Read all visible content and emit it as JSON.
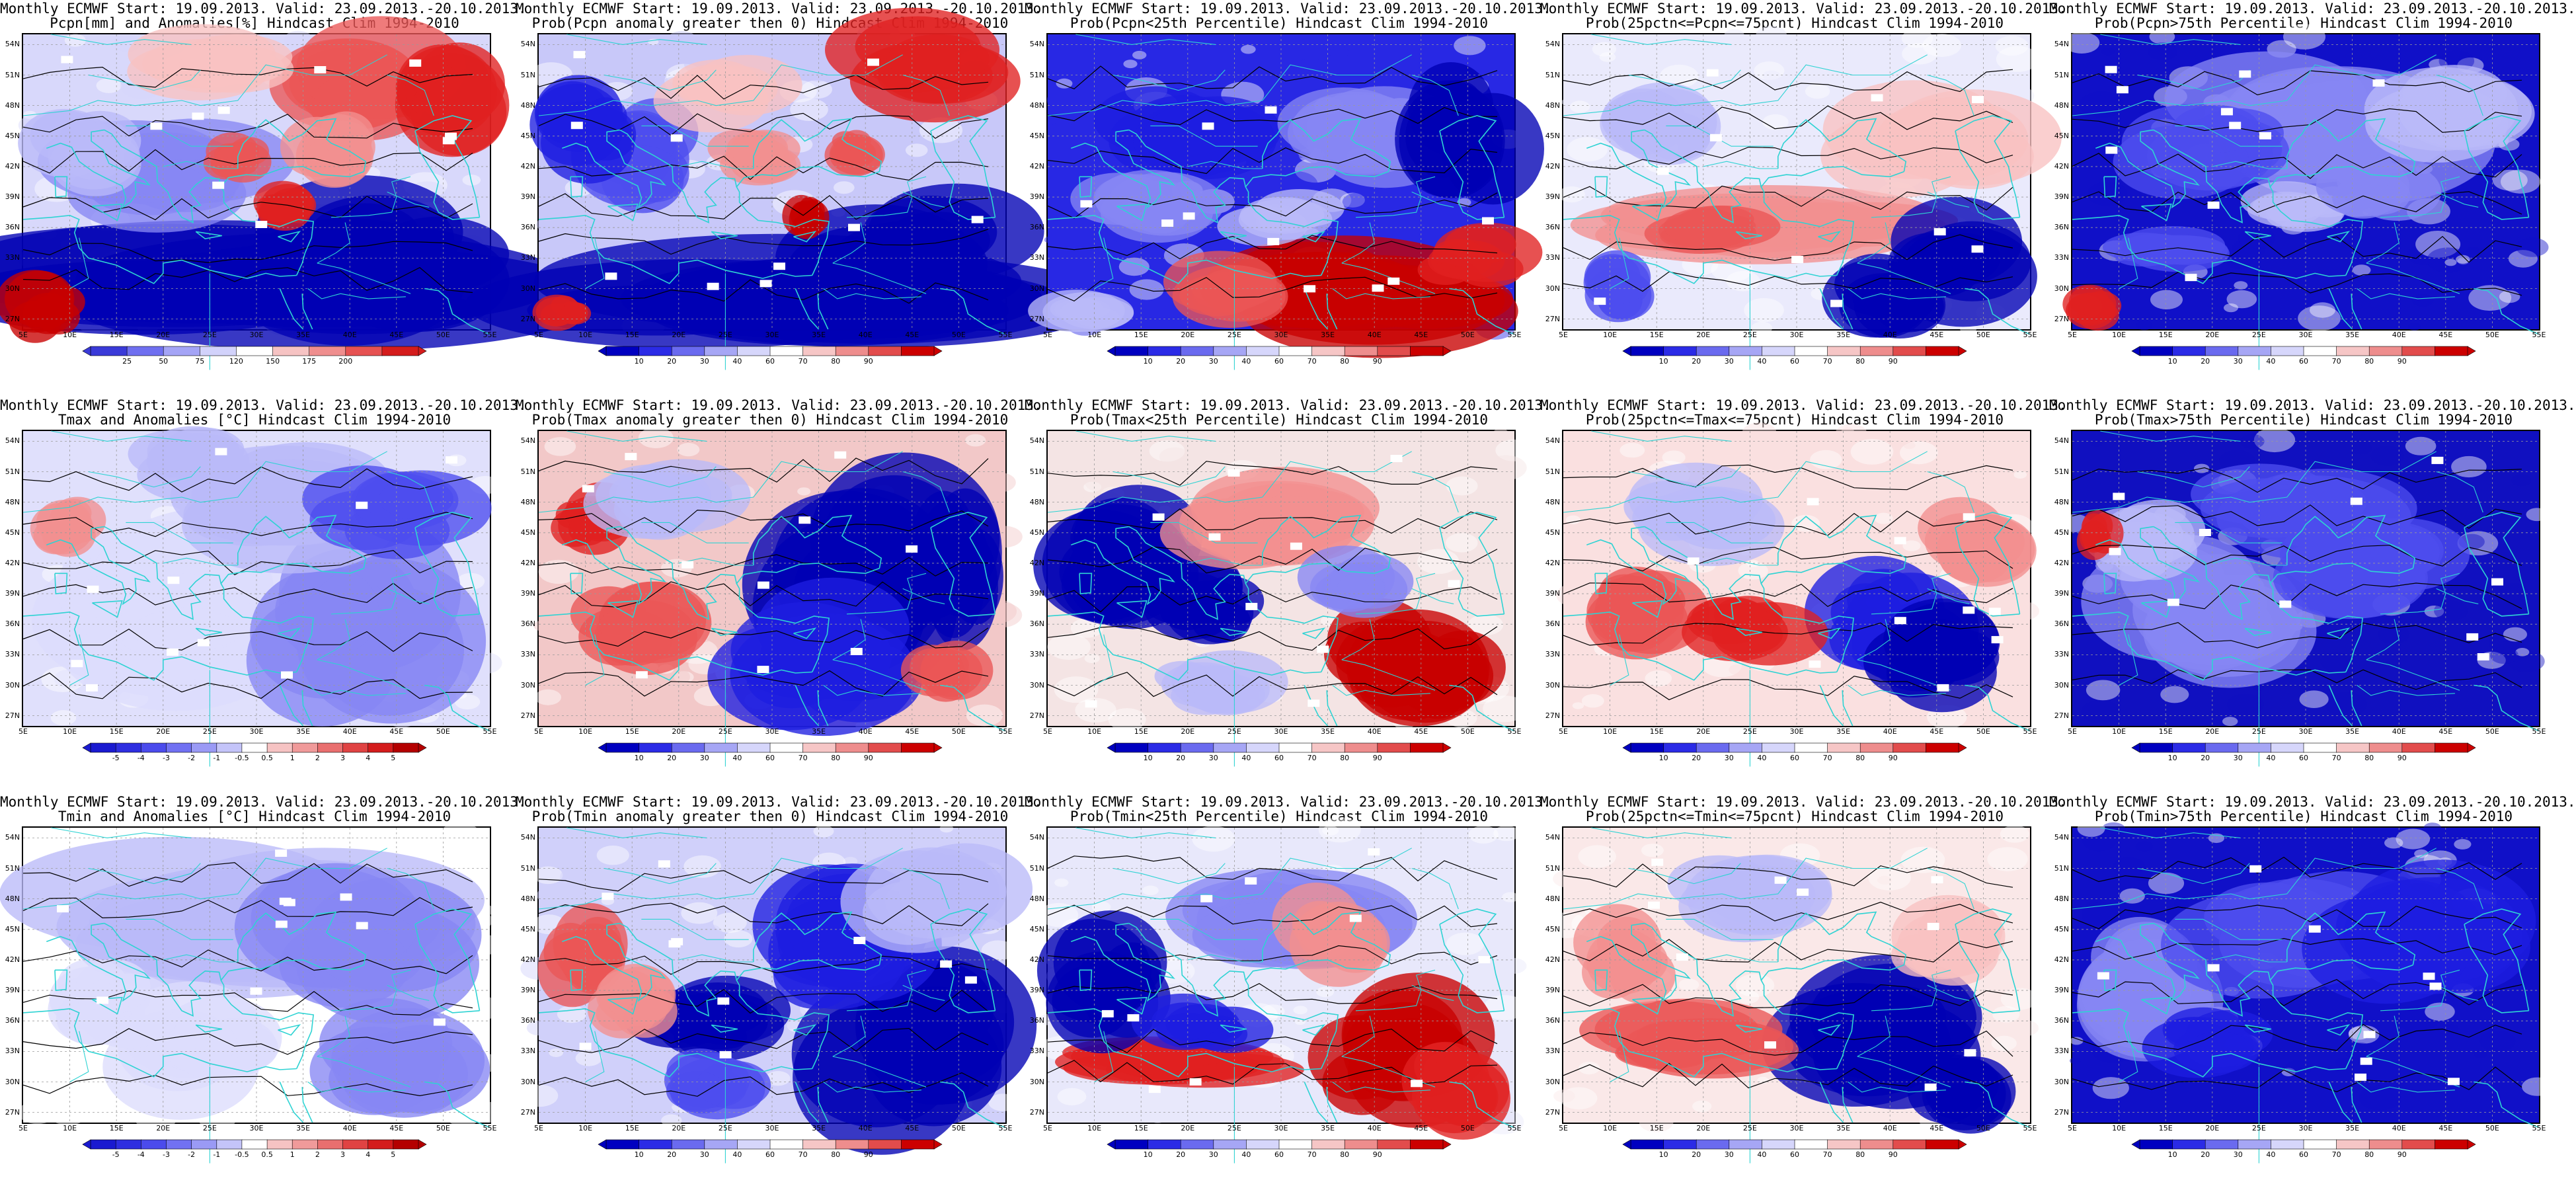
{
  "panels": [
    {
      "title1": "Monthly ECMWF Start: 19.09.2013. Valid: 23.09.2013.-20.10.2013.",
      "title2": "Pcpn[mm] and Anomalies[%] Hindcast Clim 1994-2010",
      "map_pattern": "pcpn-anomaly",
      "colorbar": "anom_pcp"
    },
    {
      "title1": "Monthly ECMWF Start: 19.09.2013. Valid: 23.09.2013.-20.10.2013.",
      "title2": "Prob(Pcpn anomaly greater then 0) Hindcast Clim 1994-2010",
      "map_pattern": "pcpn-prob-above-0",
      "colorbar": "prob"
    },
    {
      "title1": "Monthly ECMWF Start: 19.09.2013. Valid: 23.09.2013.-20.10.2013.",
      "title2": "Prob(Pcpn<25th Percentile) Hindcast Clim 1994-2010",
      "map_pattern": "pcpn-prob-below-25",
      "colorbar": "prob"
    },
    {
      "title1": "Monthly ECMWF Start: 19.09.2013. Valid: 23.09.2013.-20.10.2013.",
      "title2": "Prob(25pctn<=Pcpn<=75pcnt) Hindcast Clim 1994-2010",
      "map_pattern": "pcpn-prob-middle",
      "colorbar": "prob"
    },
    {
      "title1": "Monthly ECMWF Start: 19.09.2013. Valid: 23.09.2013.-20.10.2013.",
      "title2": "Prob(Pcpn>75th Percentile) Hindcast Clim 1994-2010",
      "map_pattern": "pcpn-prob-above-75",
      "colorbar": "prob"
    },
    {
      "title1": "Monthly ECMWF Start: 19.09.2013. Valid: 23.09.2013.-20.10.2013.",
      "title2": "Tmax and Anomalies [°C] Hindcast Clim 1994-2010",
      "map_pattern": "tmax-anomaly",
      "colorbar": "anom_t"
    },
    {
      "title1": "Monthly ECMWF Start: 19.09.2013. Valid: 23.09.2013.-20.10.2013.",
      "title2": "Prob(Tmax anomaly greater then 0) Hindcast Clim 1994-2010",
      "map_pattern": "tmax-prob-above-0",
      "colorbar": "prob"
    },
    {
      "title1": "Monthly ECMWF Start: 19.09.2013. Valid: 23.09.2013.-20.10.2013.",
      "title2": "Prob(Tmax<25th Percentile) Hindcast Clim 1994-2010",
      "map_pattern": "tmax-prob-below-25",
      "colorbar": "prob"
    },
    {
      "title1": "Monthly ECMWF Start: 19.09.2013. Valid: 23.09.2013.-20.10.2013.",
      "title2": "Prob(25pctn<=Tmax<=75pcnt) Hindcast Clim 1994-2010",
      "map_pattern": "tmax-prob-middle",
      "colorbar": "prob"
    },
    {
      "title1": "Monthly ECMWF Start: 19.09.2013. Valid: 23.09.2013.-20.10.2013.",
      "title2": "Prob(Tmax>75th Percentile) Hindcast Clim 1994-2010",
      "map_pattern": "tmax-prob-above-75",
      "colorbar": "prob"
    },
    {
      "title1": "Monthly ECMWF Start: 19.09.2013. Valid: 23.09.2013.-20.10.2013.",
      "title2": "Tmin and Anomalies [°C] Hindcast Clim 1994-2010",
      "map_pattern": "tmin-anomaly",
      "colorbar": "anom_t"
    },
    {
      "title1": "Monthly ECMWF Start: 19.09.2013. Valid: 23.09.2013.-20.10.2013.",
      "title2": "Prob(Tmin anomaly greater then 0) Hindcast Clim 1994-2010",
      "map_pattern": "tmin-prob-above-0",
      "colorbar": "prob"
    },
    {
      "title1": "Monthly ECMWF Start: 19.09.2013. Valid: 23.09.2013.-20.10.2013.",
      "title2": "Prob(Tmin<25th Percentile) Hindcast Clim 1994-2010",
      "map_pattern": "tmin-prob-below-25",
      "colorbar": "prob"
    },
    {
      "title1": "Monthly ECMWF Start: 19.09.2013. Valid: 23.09.2013.-20.10.2013.",
      "title2": "Prob(25pctn<=Tmin<=75pcnt) Hindcast Clim 1994-2010",
      "map_pattern": "tmin-prob-middle",
      "colorbar": "prob"
    },
    {
      "title1": "Monthly ECMWF Start: 19.09.2013. Valid: 23.09.2013.-20.10.2013.",
      "title2": "Prob(Tmin>75th Percentile) Hindcast Clim 1994-2010",
      "map_pattern": "tmin-prob-above-75",
      "colorbar": "prob"
    }
  ],
  "axes": {
    "lat_labels": [
      "54N",
      "51N",
      "48N",
      "45N",
      "42N",
      "39N",
      "36N",
      "33N",
      "30N",
      "27N"
    ],
    "lon_labels": [
      "5E",
      "10E",
      "15E",
      "20E",
      "25E",
      "30E",
      "35E",
      "40E",
      "45E",
      "50E",
      "55E"
    ]
  },
  "colorbars": {
    "anom_pcp": {
      "labels": [
        "25",
        "50",
        "75",
        "120",
        "150",
        "175",
        "200"
      ],
      "colors": [
        "#3a3ad8",
        "#6f6ff0",
        "#a4a4f6",
        "#d2d2fb",
        "#ffffff",
        "#f6c3c3",
        "#ef8e8e",
        "#e65252",
        "#d41c1c"
      ]
    },
    "anom_t": {
      "labels": [
        "-5",
        "-4",
        "-3",
        "-2",
        "-1",
        "-0.5",
        "0.5",
        "1",
        "2",
        "3",
        "4",
        "5"
      ],
      "colors": [
        "#1a1ad0",
        "#2e2ee0",
        "#4b4bec",
        "#7171f2",
        "#9a9af5",
        "#c4c4f9",
        "#ffffff",
        "#f6c3c3",
        "#f09a9a",
        "#e96f6f",
        "#e04343",
        "#d41c1c",
        "#b40000"
      ]
    },
    "prob": {
      "labels": [
        "10",
        "20",
        "30",
        "40",
        "60",
        "70",
        "80",
        "90"
      ],
      "colors": [
        "#0000c0",
        "#2b2be6",
        "#6a6aef",
        "#a6a6f5",
        "#d6d6fb",
        "#ffffff",
        "#f6c6c6",
        "#ee8d8d",
        "#e24c4c",
        "#cc0000"
      ]
    }
  },
  "colors": {
    "coastline": "#2ed3d3",
    "contour": "#000000",
    "deep_blue": "#0000b4",
    "deep_red": "#c80000"
  }
}
